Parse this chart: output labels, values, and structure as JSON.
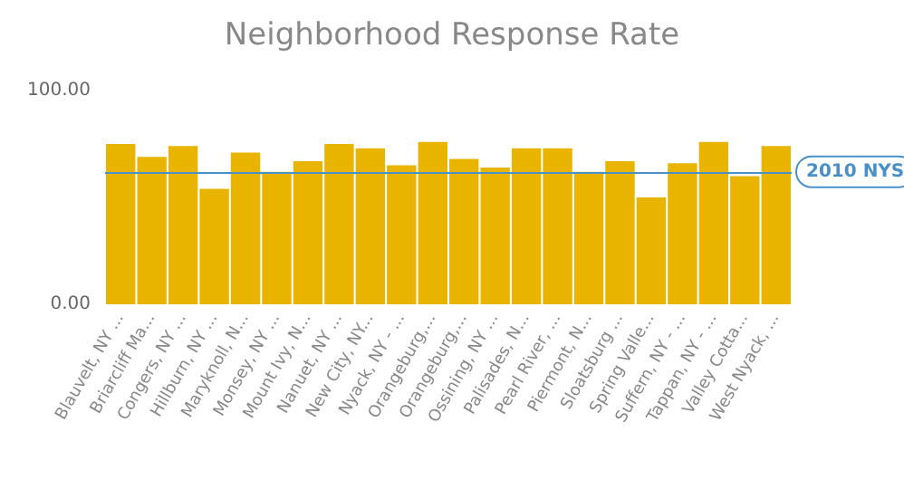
{
  "chart_data": {
    "type": "bar",
    "title": "Neighborhood Response Rate",
    "categories": [
      "Blauvelt, NY ...",
      "Briarcliff Ma...",
      "Congers, NY ...",
      "Hillburn, NY ...",
      "Maryknoll, N...",
      "Monsey, NY ...",
      "Mount Ivy, N...",
      "Nanuet, NY ...",
      "New City, NY...",
      "Nyack, NY - ...",
      "Orangeburg,...",
      "Orangeburg,...",
      "Ossining, NY ...",
      "Palisades, N...",
      "Pearl River, ...",
      "Piermont, N...",
      "Sloatsburg ...",
      "Spring Valle...",
      "Suffern, NY - ...",
      "Tappan, NY - ...",
      "Valley Cotta...",
      "West Nyack, ..."
    ],
    "values": [
      75,
      69,
      74,
      54,
      71,
      62,
      67,
      75,
      73,
      65,
      76,
      68,
      64,
      73,
      73,
      62,
      67,
      50,
      66,
      76,
      60,
      74
    ],
    "color": "#e8b400",
    "ylim": [
      0,
      100
    ],
    "yticks": [
      {
        "value": 0,
        "label": "0.00"
      },
      {
        "value": 100,
        "label": "100.00"
      }
    ],
    "grid": false,
    "ref_lines": [
      {
        "axis": "y",
        "value": 62,
        "label": "2010 NYS",
        "color": "#4a90c8"
      }
    ]
  }
}
